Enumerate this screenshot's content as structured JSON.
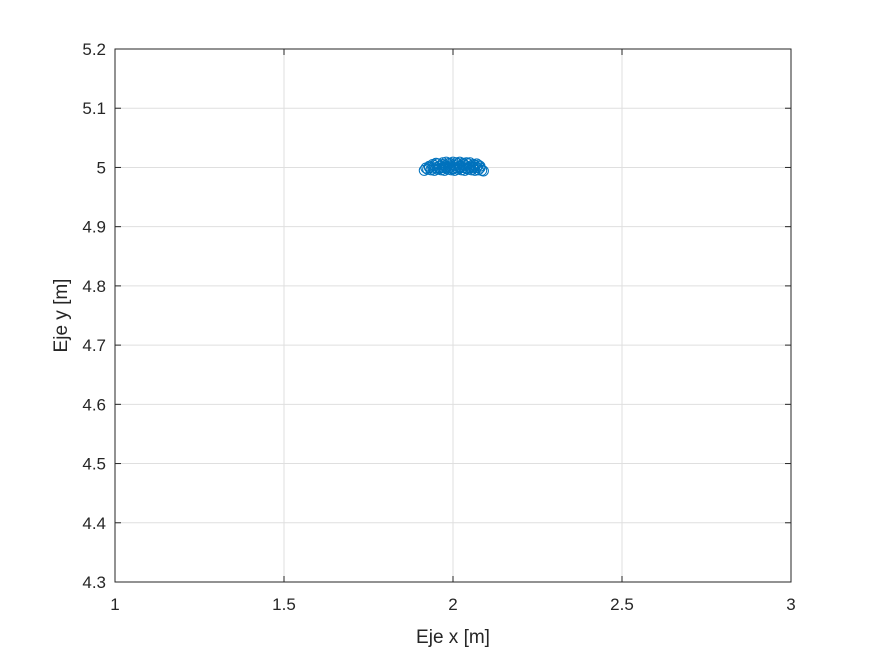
{
  "chart_data": {
    "type": "scatter",
    "title": "",
    "xlabel": "Eje x [m]",
    "ylabel": "Eje y [m]",
    "xlim": [
      1,
      3
    ],
    "ylim": [
      4.3,
      5.2
    ],
    "xticks": [
      1,
      1.5,
      2,
      2.5,
      3
    ],
    "xtick_labels": [
      "1",
      "1.5",
      "2",
      "2.5",
      "3"
    ],
    "yticks": [
      4.3,
      4.4,
      4.5,
      4.6,
      4.7,
      4.8,
      4.9,
      5,
      5.1,
      5.2
    ],
    "ytick_labels": [
      "4.3",
      "4.4",
      "4.5",
      "4.6",
      "4.7",
      "4.8",
      "4.9",
      "5",
      "5.1",
      "5.2"
    ],
    "grid": true,
    "marker": "circle-open",
    "color": "#0072BD",
    "series": [
      {
        "x": [
          1.915,
          1.925,
          1.935,
          1.945,
          1.955,
          1.965,
          1.975,
          1.985,
          1.995,
          2.005,
          2.015,
          2.025,
          2.035,
          2.045,
          2.055,
          2.065,
          2.075,
          2.085,
          2.09,
          1.92,
          1.93,
          1.94,
          1.95,
          1.96,
          1.97,
          1.98,
          1.99,
          2.0,
          2.01,
          2.02,
          2.03,
          2.04,
          2.05,
          2.06,
          2.07,
          2.08,
          1.93,
          1.945,
          1.96,
          1.975,
          1.99,
          2.005,
          2.02,
          2.035,
          2.05,
          2.065,
          2.08,
          1.94,
          1.955,
          1.97,
          1.985,
          2.0,
          2.015,
          2.03,
          2.045,
          2.06,
          2.075,
          1.95,
          1.97,
          1.99,
          2.01,
          2.03,
          2.05,
          2.07,
          1.96,
          1.98,
          2.0,
          2.02,
          2.04,
          2.06,
          1.98,
          2.0,
          2.02,
          2.04
        ],
        "y": [
          4.995,
          4.997,
          4.996,
          4.995,
          4.997,
          4.996,
          4.995,
          4.997,
          4.996,
          4.995,
          4.997,
          4.996,
          4.995,
          4.997,
          4.996,
          4.995,
          4.996,
          4.995,
          4.994,
          4.999,
          5.0,
          4.999,
          5.0,
          4.999,
          5.0,
          4.999,
          5.0,
          4.999,
          5.0,
          4.999,
          5.0,
          4.999,
          5.0,
          4.999,
          5.0,
          4.999,
          5.002,
          5.003,
          5.002,
          5.003,
          5.002,
          5.003,
          5.002,
          5.003,
          5.002,
          5.003,
          5.002,
          5.005,
          5.006,
          5.005,
          5.006,
          5.005,
          5.006,
          5.005,
          5.006,
          5.005,
          5.004,
          5.007,
          5.008,
          5.007,
          5.008,
          5.007,
          5.008,
          5.006,
          4.998,
          5.001,
          4.998,
          5.001,
          4.998,
          5.001,
          5.009,
          5.009,
          5.009,
          5.008
        ]
      }
    ]
  }
}
